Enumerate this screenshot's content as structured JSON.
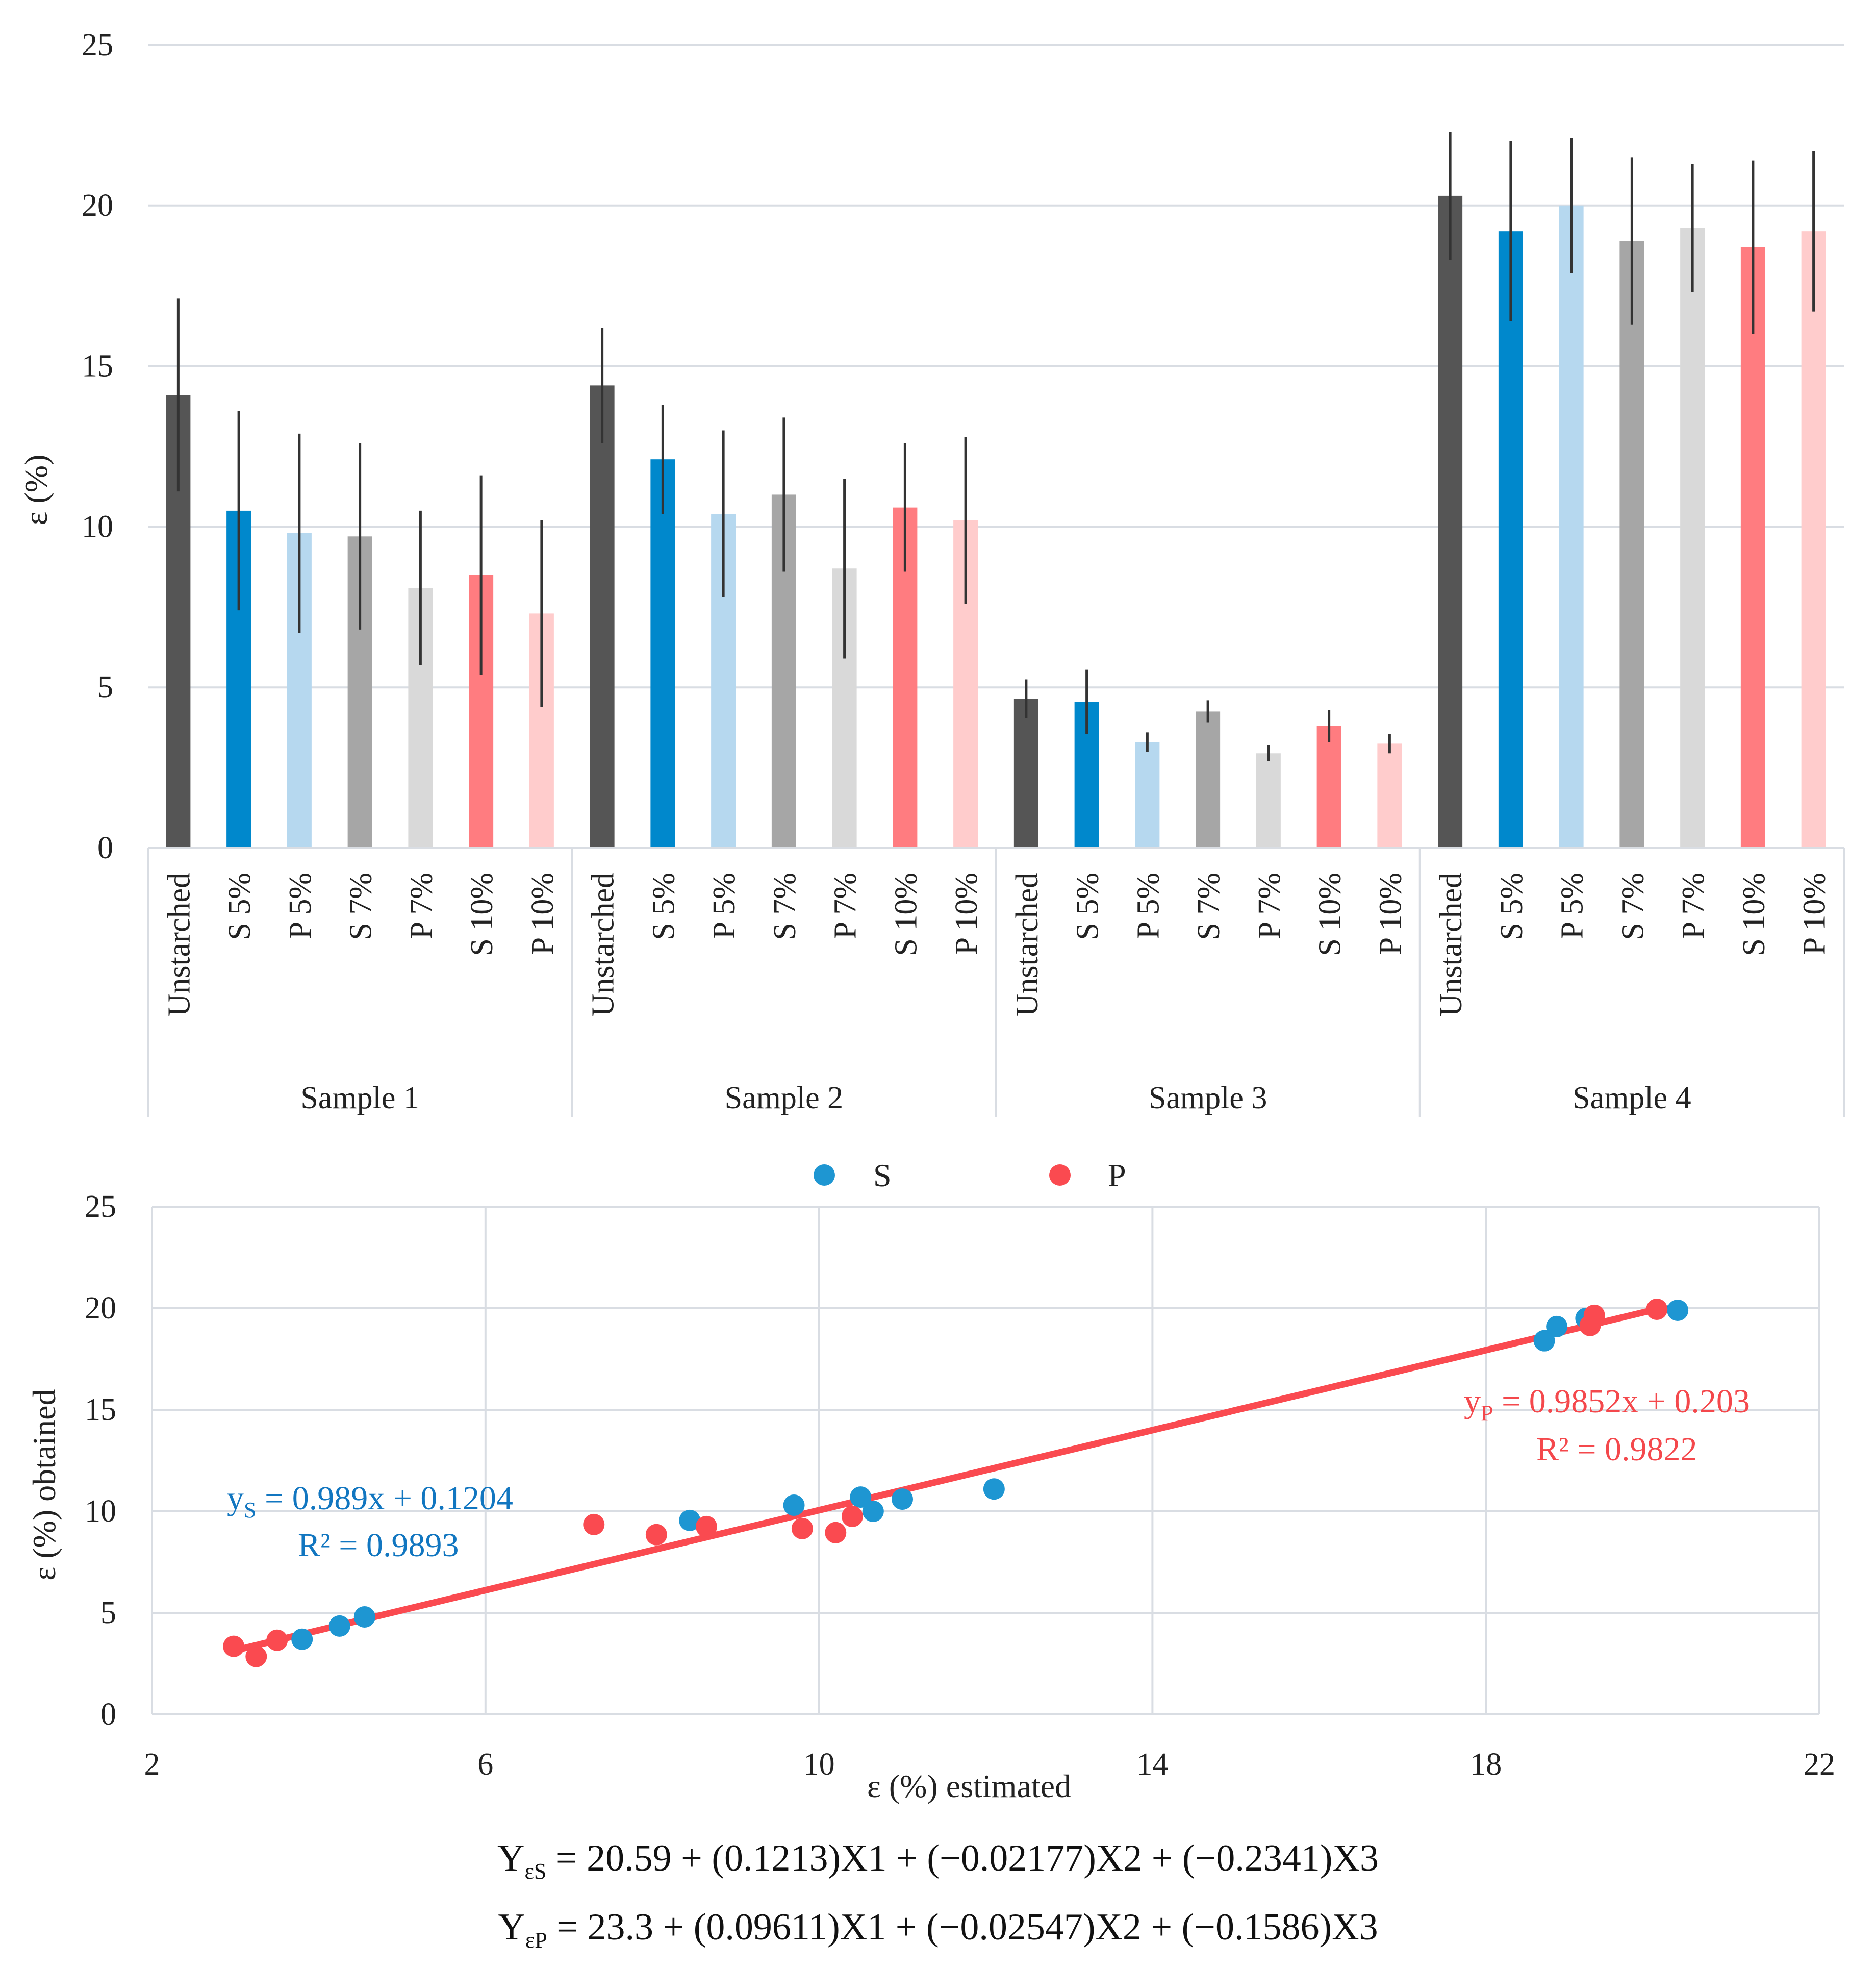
{
  "colors": {
    "Unstarched": "#555555",
    "S 5%": "#0088cc",
    "P 5%": "#b6d8ef",
    "S 7%": "#a6a6a6",
    "P 7%": "#d9d9d9",
    "S 10%": "#ff7c80",
    "P 10%": "#ffcccc",
    "S_points": "#1e96d2",
    "P_points": "#fa4a50",
    "S_eq": "#1176c0",
    "P_eq": "#f4484c"
  },
  "chart_data": [
    {
      "type": "bar",
      "title": "",
      "xlabel": "",
      "ylabel": "ε  (%)",
      "ylim": [
        0,
        25
      ],
      "yticks": [
        0,
        5,
        10,
        15,
        20,
        25
      ],
      "grid": true,
      "categories": [
        "Unstarched",
        "S 5%",
        "P 5%",
        "S 7%",
        "P 7%",
        "S 10%",
        "P 10%"
      ],
      "groups": [
        {
          "name": "Sample 1",
          "values": [
            14.1,
            10.5,
            9.8,
            9.7,
            8.1,
            8.5,
            7.3
          ],
          "errors": [
            3.0,
            3.1,
            3.1,
            2.9,
            2.4,
            3.1,
            2.9
          ]
        },
        {
          "name": "Sample 2",
          "values": [
            14.4,
            12.1,
            10.4,
            11.0,
            8.7,
            10.6,
            10.2
          ],
          "errors": [
            1.8,
            1.7,
            2.6,
            2.4,
            2.8,
            2.0,
            2.6
          ]
        },
        {
          "name": "Sample 3",
          "values": [
            4.65,
            4.55,
            3.3,
            4.25,
            2.95,
            3.8,
            3.25
          ],
          "errors": [
            0.6,
            1.0,
            0.3,
            0.35,
            0.25,
            0.5,
            0.3
          ]
        },
        {
          "name": "Sample 4",
          "values": [
            20.3,
            19.2,
            20.0,
            18.9,
            19.3,
            18.7,
            19.2
          ],
          "errors": [
            2.0,
            2.8,
            2.1,
            2.6,
            2.0,
            2.7,
            2.5
          ]
        }
      ]
    },
    {
      "type": "scatter",
      "title": "",
      "xlabel": "ε (%) estimated",
      "ylabel": "ε (%) obtained",
      "xlim": [
        2,
        22
      ],
      "ylim": [
        0,
        25
      ],
      "xticks": [
        2,
        6,
        10,
        14,
        18,
        22
      ],
      "yticks": [
        0,
        5,
        10,
        15,
        20,
        25
      ],
      "grid": true,
      "legend": "top",
      "series": [
        {
          "name": "S",
          "points": [
            [
              3.8,
              3.7
            ],
            [
              4.25,
              4.35
            ],
            [
              4.55,
              4.8
            ],
            [
              8.45,
              9.55
            ],
            [
              9.7,
              10.3
            ],
            [
              10.5,
              10.7
            ],
            [
              10.65,
              10.0
            ],
            [
              11.0,
              10.6
            ],
            [
              12.1,
              11.1
            ],
            [
              18.7,
              18.4
            ],
            [
              18.85,
              19.1
            ],
            [
              19.2,
              19.5
            ],
            [
              20.3,
              19.9
            ]
          ],
          "fit": {
            "slope": 0.989,
            "intercept": 0.1204
          },
          "equation_prefix": "y",
          "equation_sub": "S",
          "equation_body": " = 0.989x + 0.1204",
          "r2": "R² = 0.9893"
        },
        {
          "name": "P",
          "points": [
            [
              2.98,
              3.35
            ],
            [
              3.25,
              2.85
            ],
            [
              3.5,
              3.65
            ],
            [
              7.3,
              9.35
            ],
            [
              8.05,
              8.85
            ],
            [
              8.65,
              9.25
            ],
            [
              9.8,
              9.15
            ],
            [
              10.2,
              8.95
            ],
            [
              10.4,
              9.75
            ],
            [
              19.25,
              19.15
            ],
            [
              19.3,
              19.65
            ],
            [
              20.05,
              19.95
            ]
          ],
          "fit": {
            "slope": 0.9852,
            "intercept": 0.203
          },
          "equation_prefix": "y",
          "equation_sub": "P",
          "equation_body": " = 0.9852x + 0.203",
          "r2": "R² = 0.9822"
        }
      ]
    }
  ],
  "models": {
    "s_left": "Y",
    "s_sub": "εS",
    "s_right": " = 20.59 + (0.1213)X1 + (−0.02177)X2 + (−0.2341)X3",
    "p_left": "Y",
    "p_sub": "εP",
    "p_right": " = 23.3 + (0.09611)X1 + (−0.02547)X2 + (−0.1586)X3"
  }
}
